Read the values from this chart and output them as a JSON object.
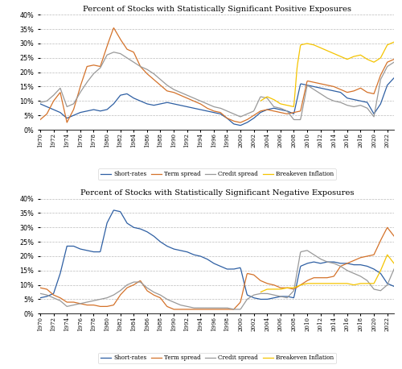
{
  "title_positive": "Percent of Stocks with Statistically Significant Positive Exposures",
  "title_negative": "Percent of Stocks with Statistically Significant Negative Exposures",
  "colors": {
    "short_rates": "#2e5fa3",
    "term_spread": "#d4722a",
    "credit_spread": "#999999",
    "breakeven": "#f5c400"
  },
  "legend_labels": [
    "Short-rates",
    "Term spread",
    "Credit spread",
    "Breakeven Inflation"
  ],
  "ylim": [
    0,
    0.4
  ],
  "yticks": [
    0.0,
    0.05,
    0.1,
    0.15,
    0.2,
    0.25,
    0.3,
    0.35,
    0.4
  ],
  "background_color": "#ffffff",
  "grid_color": "#bbbbbb"
}
